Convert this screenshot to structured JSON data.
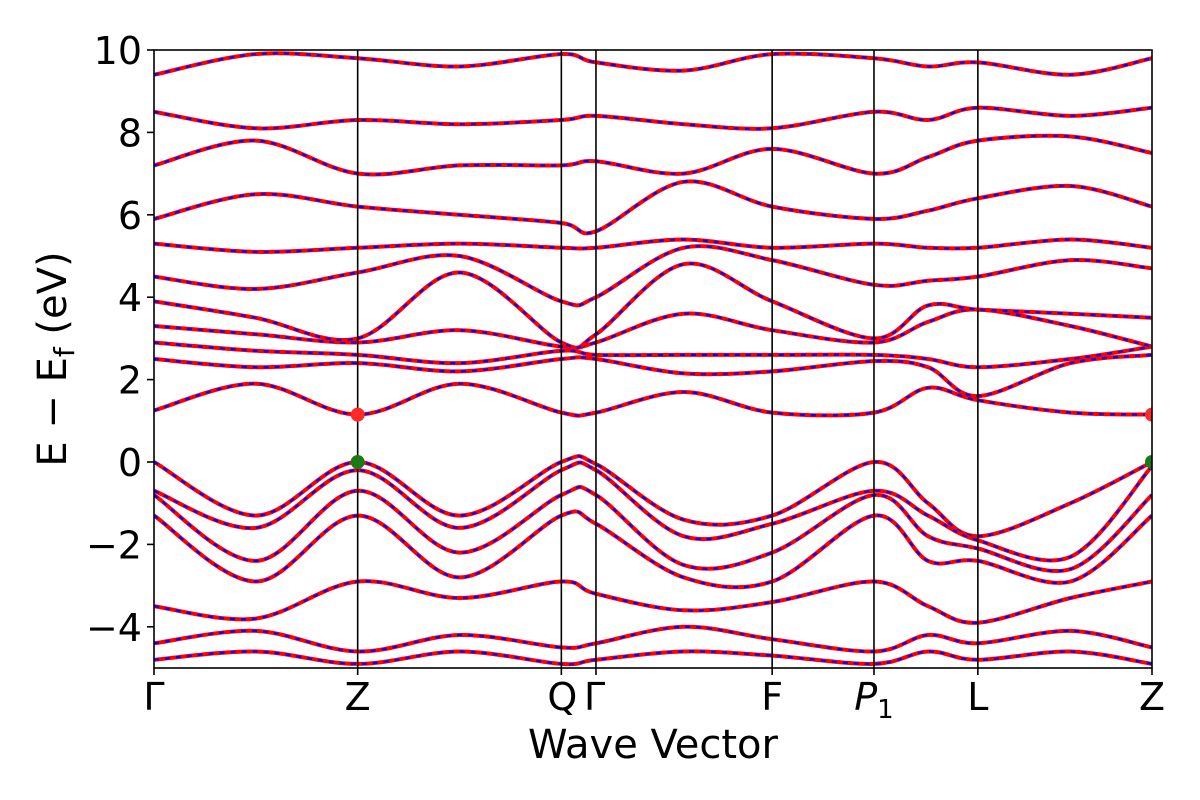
{
  "chart_data": {
    "type": "line",
    "title": "",
    "xlabel": "Wave Vector",
    "ylabel_parts": [
      "E − E",
      "f",
      " (eV)"
    ],
    "ylim": [
      -5,
      10
    ],
    "yticks": [
      -4,
      -2,
      0,
      2,
      4,
      6,
      8,
      10
    ],
    "ytick_labels": [
      "−4",
      "−2",
      "0",
      "2",
      "4",
      "6",
      "8",
      "10"
    ],
    "grid": false,
    "legend": "none",
    "kpath": [
      {
        "label": "Γ",
        "pos": 0.0
      },
      {
        "label": "Z",
        "pos": 2.0
      },
      {
        "label": "Q",
        "pos": 4.0
      },
      {
        "label": "Γ",
        "pos": 4.34
      },
      {
        "label": "F",
        "pos": 6.07
      },
      {
        "label": "P",
        "sub": "1",
        "italic": true,
        "pos": 7.07
      },
      {
        "label": "L",
        "pos": 8.09
      },
      {
        "label": "Z",
        "pos": 9.8
      }
    ],
    "xlim": [
      0,
      9.8
    ],
    "series_styles": [
      {
        "name": "",
        "color": "#ff0000",
        "style": "solid"
      },
      {
        "name": "",
        "color": "#0000ff",
        "style": "dashed"
      }
    ],
    "markers": [
      {
        "x": 2.0,
        "y": 1.15,
        "color": "#ff2a2a"
      },
      {
        "x": 9.8,
        "y": 1.15,
        "color": "#ff2a2a"
      },
      {
        "x": 2.0,
        "y": 0.0,
        "color": "#1a7a1a"
      },
      {
        "x": 9.8,
        "y": 0.0,
        "color": "#1a7a1a"
      }
    ],
    "bands": [
      {
        "x": [
          0,
          1.0,
          2.0,
          3.0,
          4.0,
          4.34,
          5.2,
          6.07,
          7.07,
          7.6,
          8.09,
          9.0,
          9.8
        ],
        "y": [
          1.25,
          1.9,
          1.15,
          1.9,
          1.2,
          1.2,
          1.7,
          1.2,
          1.2,
          1.8,
          1.5,
          1.2,
          1.15
        ]
      },
      {
        "x": [
          0,
          1.0,
          2.0,
          3.0,
          4.0,
          4.34,
          5.2,
          6.07,
          7.07,
          7.6,
          8.09,
          9.0,
          9.8
        ],
        "y": [
          2.5,
          2.3,
          2.4,
          2.2,
          2.5,
          2.5,
          2.15,
          2.2,
          2.45,
          2.3,
          1.6,
          2.4,
          2.6
        ]
      },
      {
        "x": [
          0,
          1.0,
          2.0,
          3.0,
          4.0,
          4.34,
          5.2,
          6.07,
          7.07,
          7.6,
          8.09,
          9.0,
          9.8
        ],
        "y": [
          2.9,
          2.7,
          2.6,
          2.4,
          2.7,
          2.6,
          2.6,
          2.6,
          2.6,
          2.5,
          2.3,
          2.5,
          2.8
        ]
      },
      {
        "x": [
          0,
          1.0,
          2.0,
          3.0,
          4.0,
          4.34,
          5.2,
          6.07,
          7.07,
          7.6,
          8.09,
          9.0,
          9.8
        ],
        "y": [
          3.3,
          3.1,
          2.9,
          3.2,
          2.8,
          2.9,
          3.6,
          3.2,
          2.9,
          3.4,
          3.7,
          3.3,
          2.8
        ]
      },
      {
        "x": [
          0,
          1.0,
          2.0,
          3.0,
          4.0,
          4.34,
          5.2,
          6.07,
          7.07,
          7.6,
          8.09,
          9.0,
          9.8
        ],
        "y": [
          3.9,
          3.5,
          3.0,
          4.6,
          2.9,
          3.1,
          4.8,
          3.9,
          3.0,
          3.8,
          3.7,
          3.6,
          3.5
        ]
      },
      {
        "x": [
          0,
          1.0,
          2.0,
          3.0,
          4.0,
          4.34,
          5.2,
          6.07,
          7.07,
          7.6,
          8.09,
          9.0,
          9.8
        ],
        "y": [
          4.5,
          4.2,
          4.6,
          5.0,
          3.9,
          4.0,
          5.2,
          4.9,
          4.3,
          4.4,
          4.5,
          4.9,
          4.7
        ]
      },
      {
        "x": [
          0,
          1.0,
          2.0,
          3.0,
          4.0,
          4.34,
          5.2,
          6.07,
          7.07,
          7.6,
          8.09,
          9.0,
          9.8
        ],
        "y": [
          5.3,
          5.1,
          5.2,
          5.3,
          5.2,
          5.2,
          5.4,
          5.2,
          5.3,
          5.2,
          5.2,
          5.4,
          5.2
        ]
      },
      {
        "x": [
          0,
          1.0,
          2.0,
          3.0,
          4.0,
          4.34,
          5.2,
          6.07,
          7.07,
          7.6,
          8.09,
          9.0,
          9.8
        ],
        "y": [
          5.9,
          6.5,
          6.2,
          6.0,
          5.8,
          5.6,
          6.8,
          6.2,
          5.9,
          6.1,
          6.4,
          6.7,
          6.2
        ]
      },
      {
        "x": [
          0,
          1.0,
          2.0,
          3.0,
          4.0,
          4.34,
          5.2,
          6.07,
          7.07,
          7.6,
          8.09,
          9.0,
          9.8
        ],
        "y": [
          7.2,
          7.8,
          7.0,
          7.2,
          7.2,
          7.3,
          7.0,
          7.6,
          7.0,
          7.4,
          7.8,
          7.9,
          7.5
        ]
      },
      {
        "x": [
          0,
          1.0,
          2.0,
          3.0,
          4.0,
          4.34,
          5.2,
          6.07,
          7.07,
          7.6,
          8.09,
          9.0,
          9.8
        ],
        "y": [
          8.5,
          8.1,
          8.3,
          8.2,
          8.3,
          8.4,
          8.2,
          8.1,
          8.5,
          8.3,
          8.6,
          8.4,
          8.6
        ]
      },
      {
        "x": [
          0,
          1.0,
          2.0,
          3.0,
          4.0,
          4.34,
          5.2,
          6.07,
          7.07,
          7.6,
          8.09,
          9.0,
          9.8
        ],
        "y": [
          9.4,
          9.9,
          9.8,
          9.6,
          9.9,
          9.7,
          9.5,
          9.9,
          9.8,
          9.6,
          9.7,
          9.4,
          9.8
        ]
      },
      {
        "x": [
          0,
          1.0,
          2.0,
          3.0,
          4.0,
          4.34,
          5.2,
          6.07,
          7.07,
          7.6,
          8.09,
          9.0,
          9.8
        ],
        "y": [
          0.0,
          -1.3,
          0.0,
          -1.3,
          0.0,
          -0.05,
          -1.4,
          -1.3,
          0.0,
          -1.0,
          -1.8,
          -1.0,
          0.0
        ]
      },
      {
        "x": [
          0,
          1.0,
          2.0,
          3.0,
          4.0,
          4.34,
          5.2,
          6.07,
          7.07,
          7.6,
          8.09,
          9.0,
          9.8
        ],
        "y": [
          -0.7,
          -1.6,
          -0.2,
          -1.6,
          -0.2,
          -0.2,
          -1.8,
          -1.5,
          -0.7,
          -1.3,
          -1.9,
          -2.3,
          -0.1
        ]
      },
      {
        "x": [
          0,
          1.0,
          2.0,
          3.0,
          4.0,
          4.34,
          5.2,
          6.07,
          7.07,
          7.6,
          8.09,
          9.0,
          9.8
        ],
        "y": [
          -0.8,
          -2.4,
          -0.7,
          -2.2,
          -0.8,
          -0.8,
          -2.5,
          -2.2,
          -0.8,
          -1.8,
          -2.1,
          -2.6,
          -0.8
        ]
      },
      {
        "x": [
          0,
          1.0,
          2.0,
          3.0,
          4.0,
          4.34,
          5.2,
          6.07,
          7.07,
          7.6,
          8.09,
          9.0,
          9.8
        ],
        "y": [
          -1.3,
          -2.9,
          -1.3,
          -2.8,
          -1.3,
          -1.5,
          -2.8,
          -2.9,
          -1.3,
          -2.4,
          -2.4,
          -2.9,
          -1.3
        ]
      },
      {
        "x": [
          0,
          1.0,
          2.0,
          3.0,
          4.0,
          4.34,
          5.2,
          6.07,
          7.07,
          7.6,
          8.09,
          9.0,
          9.8
        ],
        "y": [
          -3.5,
          -3.8,
          -2.9,
          -3.3,
          -2.9,
          -3.2,
          -3.6,
          -3.4,
          -2.9,
          -3.5,
          -3.9,
          -3.3,
          -2.9
        ]
      },
      {
        "x": [
          0,
          1.0,
          2.0,
          3.0,
          4.0,
          4.34,
          5.2,
          6.07,
          7.07,
          7.6,
          8.09,
          9.0,
          9.8
        ],
        "y": [
          -4.4,
          -4.1,
          -4.6,
          -4.2,
          -4.5,
          -4.4,
          -4.0,
          -4.3,
          -4.6,
          -4.2,
          -4.4,
          -4.1,
          -4.5
        ]
      },
      {
        "x": [
          0,
          1.0,
          2.0,
          3.0,
          4.0,
          4.34,
          5.2,
          6.07,
          7.07,
          7.6,
          8.09,
          9.0,
          9.8
        ],
        "y": [
          -4.8,
          -4.6,
          -4.9,
          -4.6,
          -4.9,
          -4.8,
          -4.6,
          -4.7,
          -4.9,
          -4.6,
          -4.8,
          -4.6,
          -4.9
        ]
      }
    ]
  }
}
